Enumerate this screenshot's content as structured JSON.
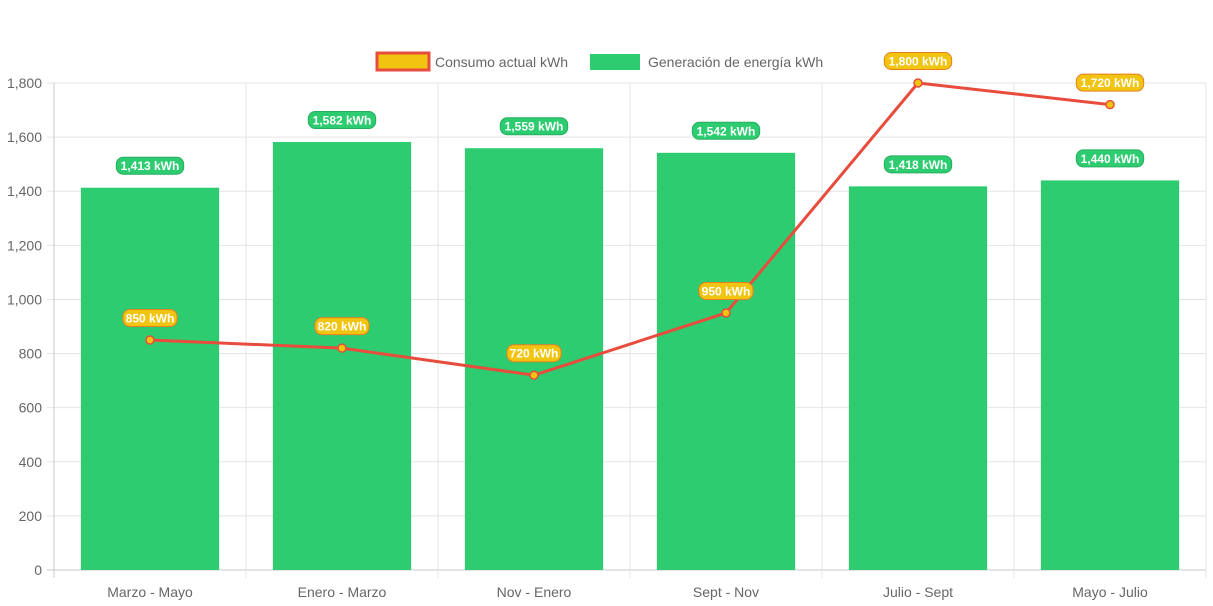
{
  "chart_data": {
    "type": "bar",
    "categories": [
      "Marzo - Mayo",
      "Enero - Marzo",
      "Nov - Enero",
      "Sept - Nov",
      "Julio - Sept",
      "Mayo - Julio"
    ],
    "series": [
      {
        "name": "Consumo actual kWh",
        "type": "line",
        "values": [
          850,
          820,
          720,
          950,
          1800,
          1720
        ],
        "labels": [
          "850 kWh",
          "820 kWh",
          "720 kWh",
          "950 kWh",
          "1,800 kWh",
          "1,720 kWh"
        ],
        "color": "#e74c3c",
        "fill": "#f1c40f"
      },
      {
        "name": "Generación de energía kWh",
        "type": "bar",
        "values": [
          1413,
          1582,
          1559,
          1542,
          1418,
          1440
        ],
        "labels": [
          "1,413 kWh",
          "1,582 kWh",
          "1,559 kWh",
          "1,542 kWh",
          "1,418 kWh",
          "1,440 kWh"
        ],
        "color": "#2ecc71",
        "border": "#27ae60"
      }
    ],
    "y_ticks": [
      "0",
      "200",
      "400",
      "600",
      "800",
      "1,000",
      "1,200",
      "1,400",
      "1,600",
      "1,800"
    ],
    "ylim": [
      0,
      1800
    ],
    "grid": true,
    "legend_position": "top"
  }
}
